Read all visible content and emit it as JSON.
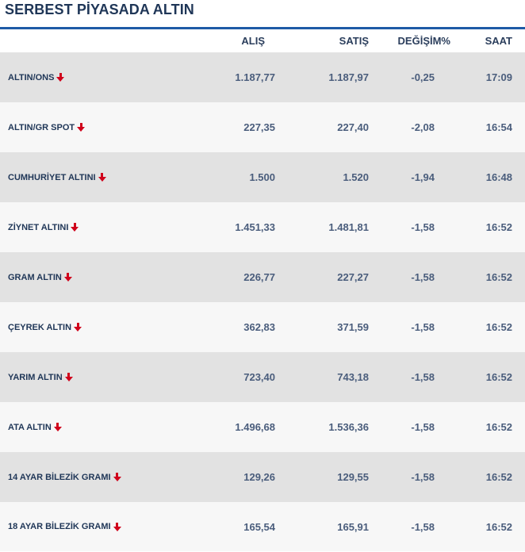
{
  "title": "SERBEST PİYASADA ALTIN",
  "headers": {
    "alis": "ALIŞ",
    "satis": "SATIŞ",
    "degisim": "DEĞİŞİM%",
    "saat": "SAAT"
  },
  "rows": [
    {
      "name": "ALTIN/ONS",
      "alis": "1.187,77",
      "satis": "1.187,97",
      "degisim": "-0,25",
      "saat": "17:09",
      "trend_icon": "arrow-down-icon"
    },
    {
      "name": "ALTIN/GR SPOT",
      "alis": "227,35",
      "satis": "227,40",
      "degisim": "-2,08",
      "saat": "16:54",
      "trend_icon": "arrow-down-icon"
    },
    {
      "name": "CUMHURİYET ALTINI",
      "alis": "1.500",
      "satis": "1.520",
      "degisim": "-1,94",
      "saat": "16:48",
      "trend_icon": "arrow-down-icon"
    },
    {
      "name": "ZİYNET ALTINI",
      "alis": "1.451,33",
      "satis": "1.481,81",
      "degisim": "-1,58",
      "saat": "16:52",
      "trend_icon": "arrow-down-icon"
    },
    {
      "name": "GRAM ALTIN",
      "alis": "226,77",
      "satis": "227,27",
      "degisim": "-1,58",
      "saat": "16:52",
      "trend_icon": "arrow-down-icon"
    },
    {
      "name": "ÇEYREK ALTIN",
      "alis": "362,83",
      "satis": "371,59",
      "degisim": "-1,58",
      "saat": "16:52",
      "trend_icon": "arrow-down-icon"
    },
    {
      "name": "YARIM ALTIN",
      "alis": "723,40",
      "satis": "743,18",
      "degisim": "-1,58",
      "saat": "16:52",
      "trend_icon": "arrow-down-icon"
    },
    {
      "name": "ATA ALTIN",
      "alis": "1.496,68",
      "satis": "1.536,36",
      "degisim": "-1,58",
      "saat": "16:52",
      "trend_icon": "arrow-down-icon"
    },
    {
      "name": "14 AYAR BİLEZİK GRAMI",
      "alis": "129,26",
      "satis": "129,55",
      "degisim": "-1,58",
      "saat": "16:52",
      "trend_icon": "arrow-down-icon"
    },
    {
      "name": "18 AYAR BİLEZİK GRAMI",
      "alis": "165,54",
      "satis": "165,91",
      "degisim": "-1,58",
      "saat": "16:52",
      "trend_icon": "arrow-down-icon"
    }
  ],
  "colors": {
    "accent": "#1e5aa6",
    "down": "#d0021b",
    "row_odd": "#e2e2e2",
    "row_even": "#f7f7f7"
  }
}
